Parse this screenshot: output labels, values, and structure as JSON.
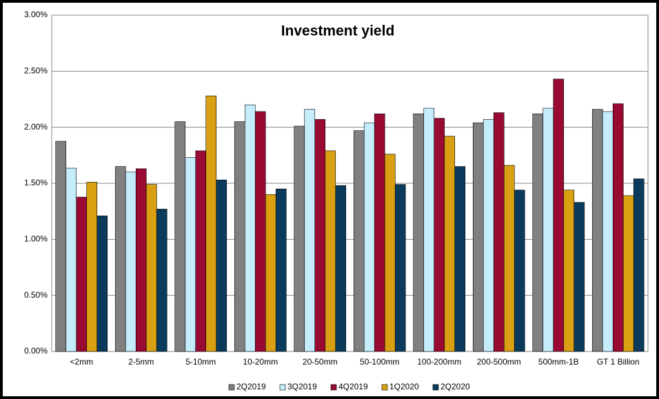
{
  "chart_data": {
    "type": "bar",
    "title": "Investment yield",
    "categories": [
      "<2mm",
      "2-5mm",
      "5-10mm",
      "10-20mm",
      "20-50mm",
      "50-100mm",
      "100-200mm",
      "200-500mm",
      "500mm-1B",
      "GT 1 Billion"
    ],
    "series": [
      {
        "name": "2Q2019",
        "color": "#808080",
        "values": [
          1.875,
          1.65,
          2.05,
          2.05,
          2.01,
          1.97,
          2.12,
          2.04,
          2.12,
          2.16
        ]
      },
      {
        "name": "3Q2019",
        "color": "#c4ecfb",
        "values": [
          1.635,
          1.6,
          1.73,
          2.2,
          2.16,
          2.04,
          2.17,
          2.07,
          2.17,
          2.14
        ]
      },
      {
        "name": "4Q2019",
        "color": "#990a33",
        "values": [
          1.377,
          1.63,
          1.79,
          2.14,
          2.07,
          2.12,
          2.08,
          2.13,
          2.43,
          2.21
        ]
      },
      {
        "name": "1Q2020",
        "color": "#d8a012",
        "values": [
          1.51,
          1.49,
          2.28,
          1.4,
          1.79,
          1.76,
          1.92,
          1.66,
          1.44,
          1.39
        ]
      },
      {
        "name": "2Q2020",
        "color": "#0b3b5c",
        "values": [
          1.21,
          1.27,
          1.53,
          1.45,
          1.48,
          1.49,
          1.65,
          1.44,
          1.33,
          1.54
        ]
      }
    ],
    "ylim": [
      0,
      3
    ],
    "yticks": [
      {
        "value": 0,
        "label": "0.00%"
      },
      {
        "value": 0.5,
        "label": "0.50%"
      },
      {
        "value": 1,
        "label": "1.00%"
      },
      {
        "value": 1.5,
        "label": "1.50%"
      },
      {
        "value": 2,
        "label": "2.00%"
      },
      {
        "value": 2.5,
        "label": "2.50%"
      },
      {
        "value": 3,
        "label": "3.00%"
      }
    ],
    "grid": true,
    "legend": "bottom"
  }
}
